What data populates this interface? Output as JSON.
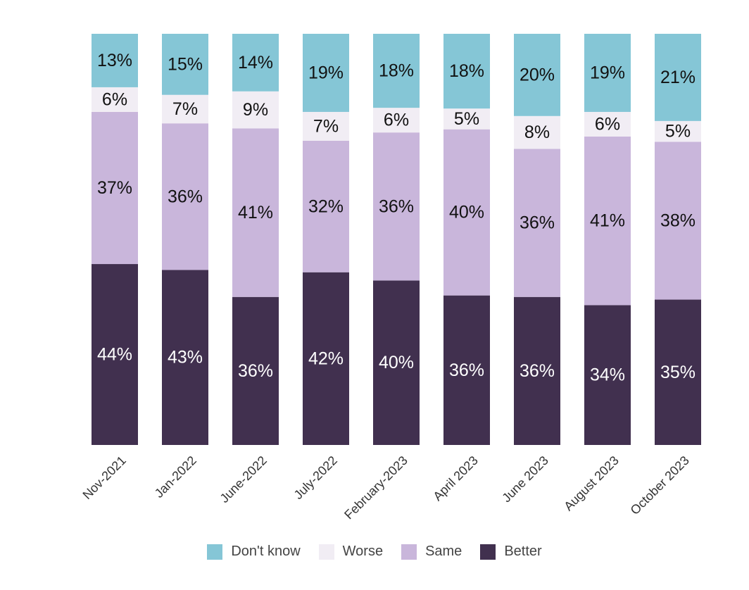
{
  "chart_data": {
    "type": "bar",
    "stacked": true,
    "normalized_percent": true,
    "categories": [
      "Nov-2021",
      "Jan-2022",
      "June-2022",
      "July-2022",
      "February-2023",
      "April 2023",
      "June 2023",
      "August 2023",
      "October 2023"
    ],
    "series": [
      {
        "name": "Better",
        "color": "#41304f",
        "label_color": "#ffffff",
        "values": [
          44,
          43,
          36,
          42,
          40,
          36,
          36,
          34,
          35
        ],
        "labels": [
          "44%",
          "43%",
          "36%",
          "42%",
          "40%",
          "36%",
          "36%",
          "34%",
          "35%"
        ]
      },
      {
        "name": "Same",
        "color": "#c9b6db",
        "label_color": "#111111",
        "values": [
          37,
          36,
          41,
          32,
          36,
          40,
          36,
          41,
          38
        ],
        "labels": [
          "37%",
          "36%",
          "41%",
          "32%",
          "36%",
          "40%",
          "36%",
          "41%",
          "38%"
        ]
      },
      {
        "name": "Worse",
        "color": "#f1edf4",
        "label_color": "#111111",
        "values": [
          6,
          7,
          9,
          7,
          6,
          5,
          8,
          6,
          5
        ],
        "labels": [
          "6%",
          "7%",
          "9%",
          "7%",
          "6%",
          "5%",
          "8%",
          "6%",
          "5%"
        ]
      },
      {
        "name": "Don't know",
        "color": "#85c6d6",
        "label_color": "#111111",
        "values": [
          13,
          15,
          14,
          19,
          18,
          18,
          20,
          19,
          21
        ],
        "labels": [
          "13%",
          "15%",
          "14%",
          "19%",
          "18%",
          "18%",
          "20%",
          "19%",
          "21%"
        ]
      }
    ],
    "legend": {
      "position": "bottom",
      "order": [
        "Don't know",
        "Worse",
        "Same",
        "Better"
      ]
    },
    "title": "",
    "xlabel": "",
    "ylabel": "",
    "grid": false
  }
}
